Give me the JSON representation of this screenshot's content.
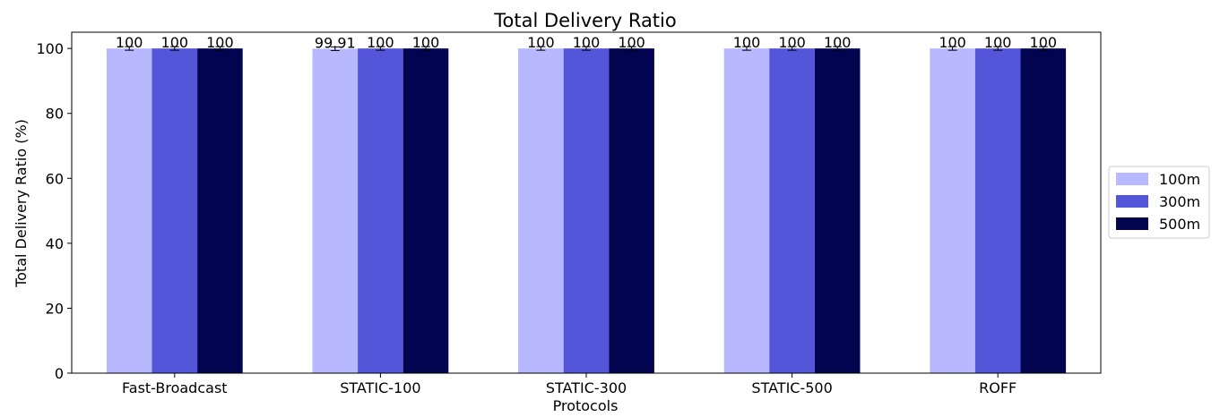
{
  "chart_data": {
    "type": "bar",
    "title": "Total Delivery Ratio",
    "xlabel": "Protocols",
    "ylabel": "Total Delivery Ratio (%)",
    "categories": [
      "Fast-Broadcast",
      "STATIC-100",
      "STATIC-300",
      "STATIC-500",
      "ROFF"
    ],
    "series": [
      {
        "name": "100m",
        "values": [
          100,
          99.91,
          100,
          100,
          100
        ],
        "labels": [
          "100",
          "99.91",
          "100",
          "100",
          "100"
        ],
        "color": "#b7b8ff"
      },
      {
        "name": "300m",
        "values": [
          100,
          100,
          100,
          100,
          100
        ],
        "labels": [
          "100",
          "100",
          "100",
          "100",
          "100"
        ],
        "color": "#5356d8"
      },
      {
        "name": "500m",
        "values": [
          100,
          100,
          100,
          100,
          100
        ],
        "labels": [
          "100",
          "100",
          "100",
          "100",
          "100"
        ],
        "color": "#03044f"
      }
    ],
    "ylim": [
      0,
      105
    ],
    "yticks": [
      0,
      20,
      40,
      60,
      80,
      100
    ],
    "error_bars": true,
    "grid": false,
    "legend": "center-right"
  }
}
